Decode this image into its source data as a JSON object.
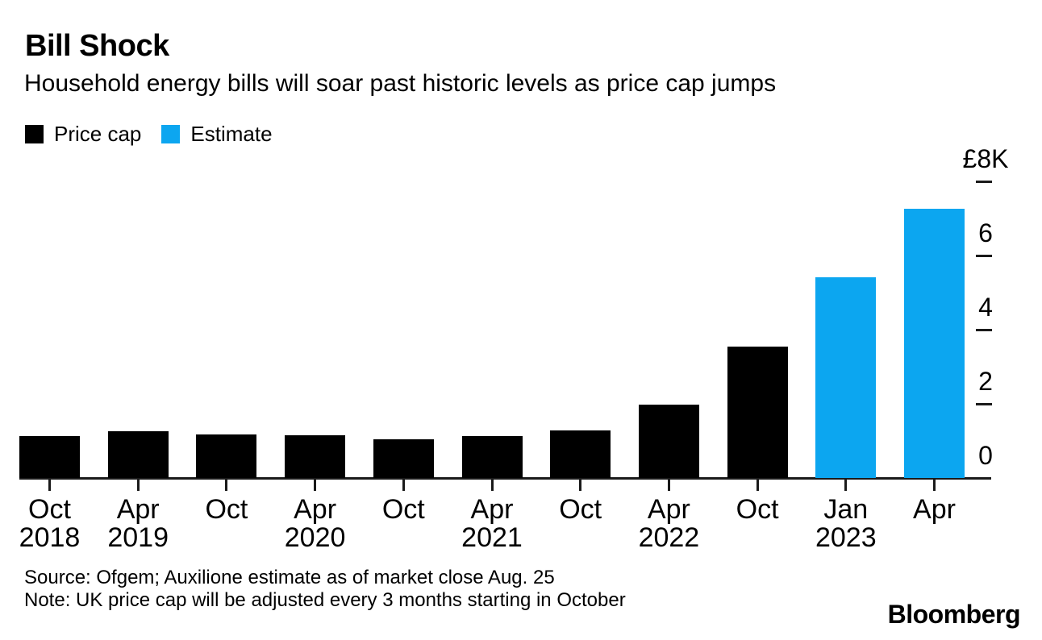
{
  "page": {
    "title": "Bill Shock",
    "subtitle": "Household energy bills will soar past historic levels as price cap jumps",
    "source_line": "Source: Ofgem; Auxilione estimate as of market close Aug. 25",
    "note_line": "Note: UK price cap will be adjusted every 3 months starting in October",
    "brand": "Bloomberg"
  },
  "colors": {
    "price_cap": "#000000",
    "estimate": "#0ca6f0",
    "axis": "#1a1a1a",
    "text": "#000000",
    "background": "#ffffff"
  },
  "legend": {
    "items": [
      {
        "label": "Price cap",
        "series": "price_cap"
      },
      {
        "label": "Estimate",
        "series": "estimate"
      }
    ]
  },
  "chart_data": {
    "type": "bar",
    "title": "Bill Shock",
    "subtitle": "Household energy bills will soar past historic levels as price cap jumps",
    "xlabel": "",
    "ylabel": "",
    "unit": "GBP",
    "ylim": [
      0,
      8000
    ],
    "grid": false,
    "y_axis_side": "right",
    "legend_position": "top-left",
    "categories": [
      "Oct 2018",
      "Apr 2019",
      "Oct 2019",
      "Apr 2020",
      "Oct 2020",
      "Apr 2021",
      "Oct 2021",
      "Apr 2022",
      "Oct 2022",
      "Jan 2023",
      "Apr 2023"
    ],
    "yticks": [
      {
        "value": 8000,
        "label": "£8K"
      },
      {
        "value": 6000,
        "label": "6"
      },
      {
        "value": 4000,
        "label": "4"
      },
      {
        "value": 2000,
        "label": "2"
      },
      {
        "value": 0,
        "label": "0"
      }
    ],
    "bars": [
      {
        "month": "Oct",
        "year": "2018",
        "value": 1137,
        "series": "price_cap"
      },
      {
        "month": "Apr",
        "year": "2019",
        "value": 1254,
        "series": "price_cap"
      },
      {
        "month": "Oct",
        "year": "",
        "value": 1179,
        "series": "price_cap"
      },
      {
        "month": "Apr",
        "year": "2020",
        "value": 1162,
        "series": "price_cap"
      },
      {
        "month": "Oct",
        "year": "",
        "value": 1042,
        "series": "price_cap"
      },
      {
        "month": "Apr",
        "year": "2021",
        "value": 1138,
        "series": "price_cap"
      },
      {
        "month": "Oct",
        "year": "",
        "value": 1277,
        "series": "price_cap"
      },
      {
        "month": "Apr",
        "year": "2022",
        "value": 1971,
        "series": "price_cap"
      },
      {
        "month": "Oct",
        "year": "",
        "value": 3549,
        "series": "price_cap"
      },
      {
        "month": "Jan",
        "year": "2023",
        "value": 5405,
        "series": "estimate"
      },
      {
        "month": "Apr",
        "year": "",
        "value": 7263,
        "series": "estimate"
      }
    ]
  }
}
